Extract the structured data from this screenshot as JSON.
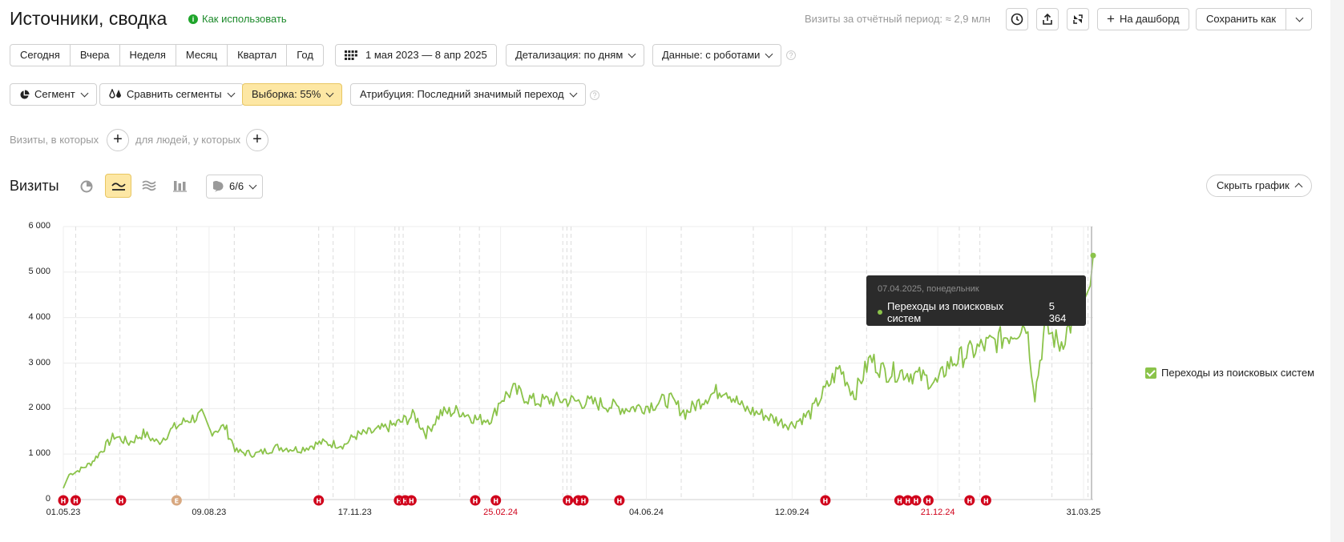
{
  "header": {
    "title": "Источники, сводка",
    "howto_label": "Как использовать",
    "visits_info": "Визиты за отчётный период: ≈ 2,9 млн",
    "dashboard_label": "На дашборд",
    "save_as_label": "Сохранить как"
  },
  "period_tabs": [
    "Сегодня",
    "Вчера",
    "Неделя",
    "Месяц",
    "Квартал",
    "Год"
  ],
  "date_range": "1 мая 2023 — 8 апр 2025",
  "detail_label": "Детализация: по дням",
  "data_label": "Данные: с роботами",
  "segment_label": "Сегмент",
  "compare_label": "Сравнить сегменты",
  "sample_label": "Выборка: 55%",
  "attribution_label": "Атрибуция: Последний значимый переход",
  "filters": {
    "visits_where": "Визиты, в которых",
    "people_where": "для людей, у которых"
  },
  "chart_section": {
    "title": "Визиты",
    "notes_count": "6/6",
    "hide_chart_label": "Скрыть график"
  },
  "tooltip": {
    "date": "07.04.2025, понедельник",
    "series": "Переходы из поисковых систем",
    "value": "5 364"
  },
  "legend": {
    "label": "Переходы из поисковых систем"
  },
  "colors": {
    "series": "#8bc34a",
    "holiday": "#d0021b",
    "note_marker": "#d0021b",
    "yellow_button": "#fde7a4"
  },
  "chart_data": {
    "type": "line",
    "title": "",
    "xlabel": "",
    "ylabel": "",
    "ylim": [
      0,
      6000
    ],
    "y_ticks": [
      "0",
      "1 000",
      "2 000",
      "3 000",
      "4 000",
      "5 000",
      "6 000"
    ],
    "x_ticks": [
      {
        "label": "01.05.23",
        "holiday": false
      },
      {
        "label": "09.08.23",
        "holiday": false
      },
      {
        "label": "17.11.23",
        "holiday": false
      },
      {
        "label": "25.02.24",
        "holiday": true
      },
      {
        "label": "04.06.24",
        "holiday": false
      },
      {
        "label": "12.09.24",
        "holiday": false
      },
      {
        "label": "21.12.24",
        "holiday": true
      },
      {
        "label": "31.03.25",
        "holiday": false
      }
    ],
    "x_domain": [
      "2023-05-01",
      "2025-04-07"
    ],
    "series": [
      {
        "name": "Переходы из поисковых систем",
        "points": [
          [
            "2023-05-01",
            250
          ],
          [
            "2023-05-05",
            550
          ],
          [
            "2023-05-12",
            650
          ],
          [
            "2023-05-20",
            800
          ],
          [
            "2023-05-28",
            1100
          ],
          [
            "2023-06-05",
            1400
          ],
          [
            "2023-06-15",
            1250
          ],
          [
            "2023-06-25",
            1450
          ],
          [
            "2023-07-05",
            1250
          ],
          [
            "2023-07-15",
            1550
          ],
          [
            "2023-07-25",
            1750
          ],
          [
            "2023-08-04",
            1850
          ],
          [
            "2023-08-10",
            1500
          ],
          [
            "2023-08-20",
            1600
          ],
          [
            "2023-08-28",
            1050
          ],
          [
            "2023-09-10",
            1000
          ],
          [
            "2023-09-25",
            1150
          ],
          [
            "2023-10-10",
            1100
          ],
          [
            "2023-10-25",
            1250
          ],
          [
            "2023-11-10",
            1200
          ],
          [
            "2023-11-17",
            1400
          ],
          [
            "2023-12-01",
            1500
          ],
          [
            "2023-12-15",
            1650
          ],
          [
            "2023-12-28",
            1850
          ],
          [
            "2024-01-05",
            1450
          ],
          [
            "2024-01-15",
            1900
          ],
          [
            "2024-01-28",
            1950
          ],
          [
            "2024-02-10",
            1750
          ],
          [
            "2024-02-20",
            1800
          ],
          [
            "2024-02-25",
            2200
          ],
          [
            "2024-03-05",
            2400
          ],
          [
            "2024-03-20",
            2150
          ],
          [
            "2024-04-05",
            2200
          ],
          [
            "2024-04-20",
            2150
          ],
          [
            "2024-05-05",
            2100
          ],
          [
            "2024-05-20",
            2000
          ],
          [
            "2024-06-04",
            2050
          ],
          [
            "2024-06-20",
            2200
          ],
          [
            "2024-07-01",
            1900
          ],
          [
            "2024-07-15",
            2250
          ],
          [
            "2024-07-28",
            2450
          ],
          [
            "2024-08-10",
            2000
          ],
          [
            "2024-08-25",
            1850
          ],
          [
            "2024-09-05",
            1700
          ],
          [
            "2024-09-12",
            1650
          ],
          [
            "2024-09-25",
            1900
          ],
          [
            "2024-10-05",
            2400
          ],
          [
            "2024-10-15",
            2900
          ],
          [
            "2024-10-25",
            2300
          ],
          [
            "2024-11-05",
            3100
          ],
          [
            "2024-11-15",
            2800
          ],
          [
            "2024-11-28",
            2800
          ],
          [
            "2024-12-10",
            2700
          ],
          [
            "2024-12-21",
            2550
          ],
          [
            "2024-12-28",
            2950
          ],
          [
            "2025-01-10",
            3200
          ],
          [
            "2025-01-20",
            3350
          ],
          [
            "2025-02-01",
            3500
          ],
          [
            "2025-02-12",
            3700
          ],
          [
            "2025-02-20",
            3900
          ],
          [
            "2025-02-26",
            2300
          ],
          [
            "2025-03-05",
            3800
          ],
          [
            "2025-03-15",
            3400
          ],
          [
            "2025-03-25",
            4000
          ],
          [
            "2025-04-01",
            4400
          ],
          [
            "2025-04-05",
            4700
          ],
          [
            "2025-04-07",
            5364
          ]
        ]
      }
    ]
  }
}
